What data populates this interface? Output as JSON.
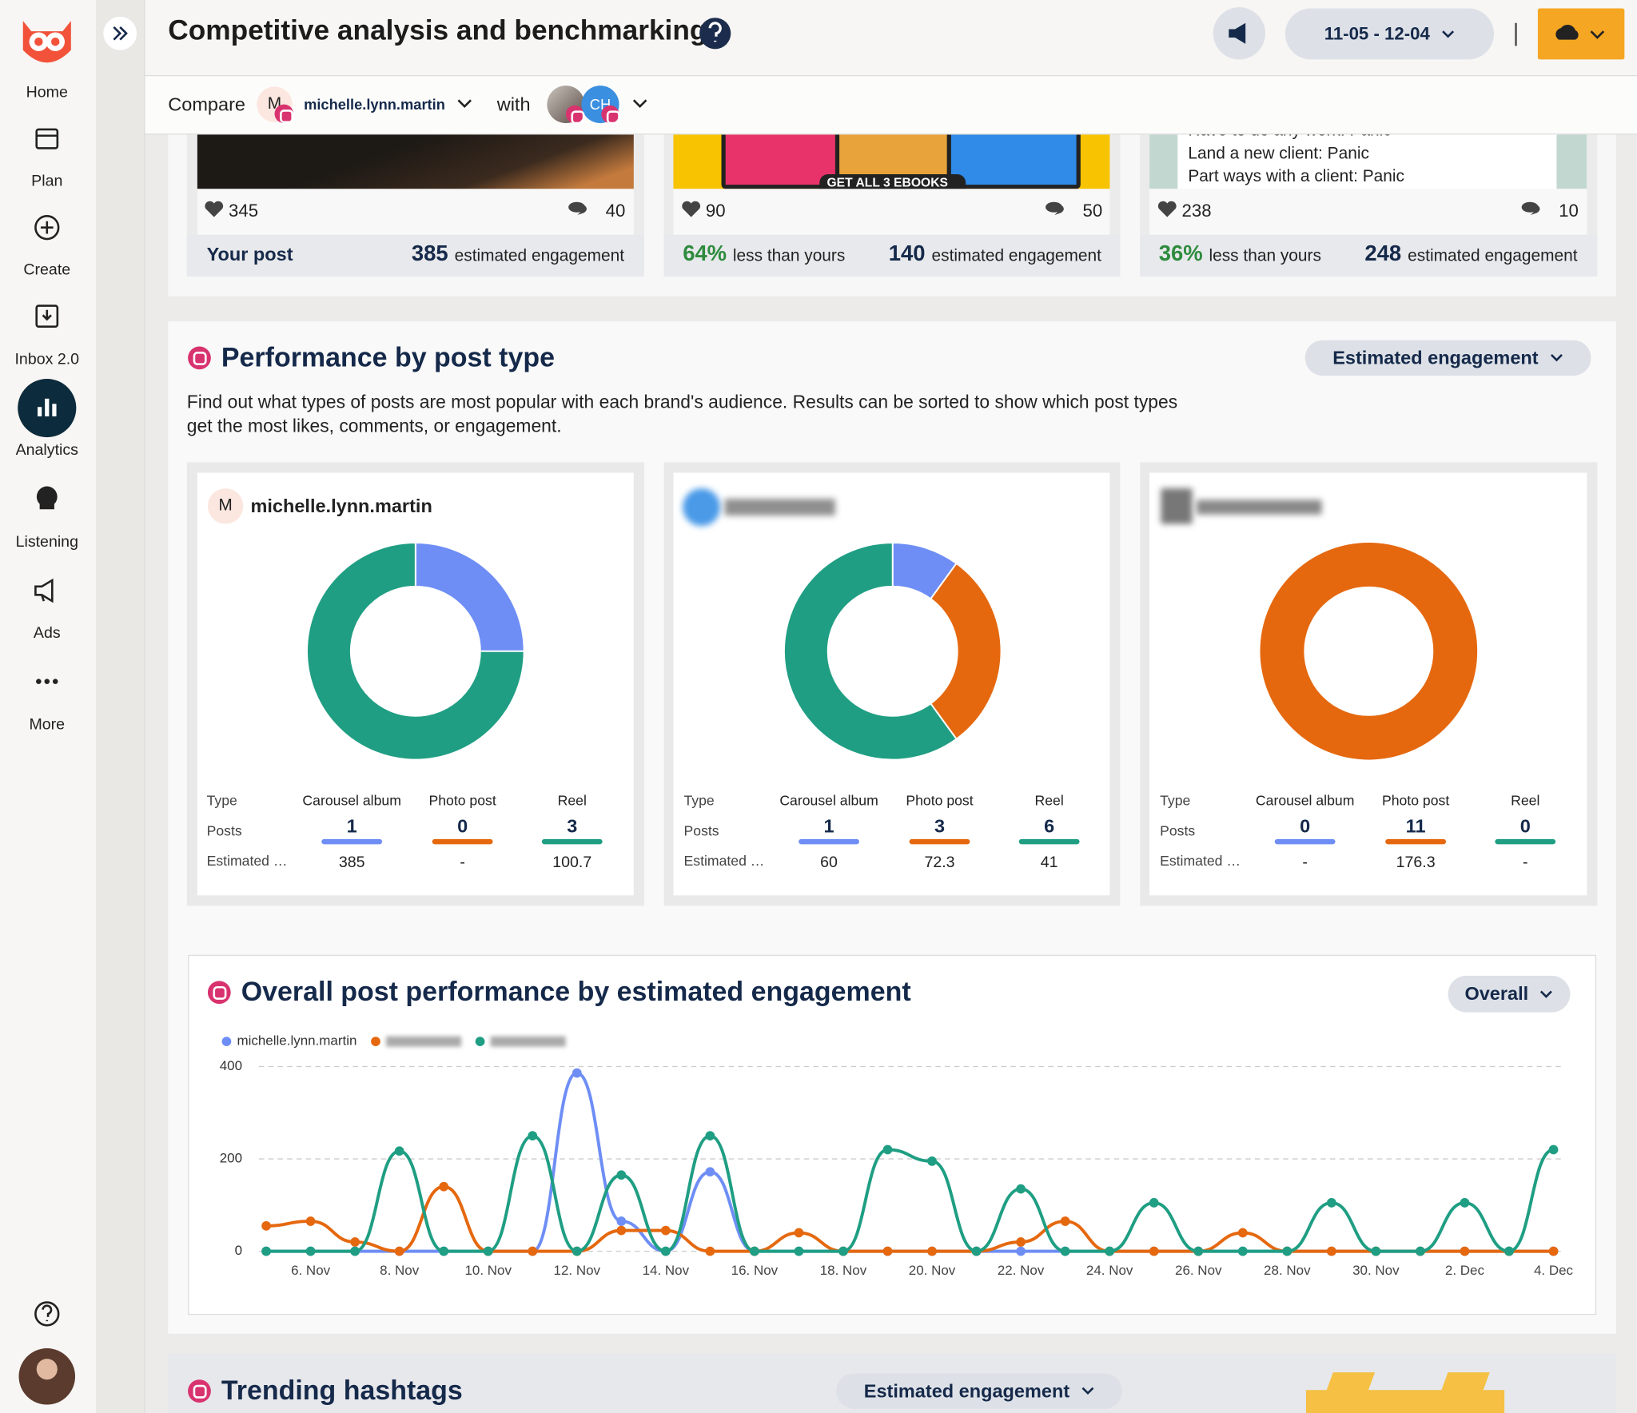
{
  "sidebar": {
    "items": [
      "Home",
      "Plan",
      "Create",
      "Inbox 2.0",
      "Analytics",
      "Listening",
      "Ads",
      "More"
    ]
  },
  "header": {
    "title": "Competitive analysis and benchmarking",
    "date_range": "11-05 - 12-04"
  },
  "compare_bar": {
    "label": "Compare",
    "avatar_initial": "M",
    "account": "michelle.lynn.martin",
    "with_label": "with",
    "competitor_initials": "CH"
  },
  "top_posts": {
    "engagement_label": "estimated engagement",
    "cards": [
      {
        "likes": 345,
        "comments": 40,
        "footer_label": "Your post",
        "engagement": 385
      },
      {
        "image_text": "GET ALL 3 EBOOKS",
        "likes": 90,
        "comments": 50,
        "difference": "64%",
        "difference_label": "less than yours",
        "engagement": 140
      },
      {
        "caption_lines": [
          "Have to do any work: Panic",
          "Land a new client: Panic",
          "Part ways with a client: Panic"
        ],
        "likes": 238,
        "comments": 10,
        "difference": "36%",
        "difference_label": "less than yours",
        "engagement": 248
      }
    ]
  },
  "performance_by_post_type": {
    "title": "Performance by post type",
    "dropdown": "Estimated engagement",
    "description": "Find out what types of posts are most popular with each brand's audience. Results can be sorted to show which post types get the most likes, comments, or engagement.",
    "row_labels": [
      "Type",
      "Posts",
      "Estimated …"
    ],
    "types": [
      "Carousel album",
      "Photo post",
      "Reel"
    ],
    "colors": [
      "#6e8ef5",
      "#e5680f",
      "#1f9e83"
    ],
    "accounts": [
      {
        "name": "michelle.lynn.martin",
        "initial": "M",
        "posts": [
          1,
          0,
          3
        ],
        "estimated": [
          385,
          "-",
          100.7
        ]
      },
      {
        "posts": [
          1,
          3,
          6
        ],
        "estimated": [
          60,
          72.3,
          41
        ]
      },
      {
        "posts": [
          0,
          11,
          0
        ],
        "estimated": [
          "-",
          176.3,
          "-"
        ]
      }
    ]
  },
  "chart_data": {
    "type": "line",
    "title": "Overall post performance by estimated engagement",
    "dropdown": "Overall",
    "categories": [
      null,
      "6. Nov",
      null,
      "8. Nov",
      null,
      "10. Nov",
      null,
      "12. Nov",
      null,
      "14. Nov",
      null,
      "16. Nov",
      null,
      "18. Nov",
      null,
      "20. Nov",
      null,
      "22. Nov",
      null,
      "24. Nov",
      null,
      "26. Nov",
      null,
      "28. Nov",
      null,
      "30. Nov",
      null,
      "2. Dec",
      null,
      "4. Dec"
    ],
    "series": [
      {
        "name": "michelle.lynn.martin",
        "color": "#6e8ef5",
        "values": [
          0,
          0,
          0,
          0,
          0,
          0,
          0,
          386,
          65,
          0,
          172,
          0,
          0,
          0,
          0,
          0,
          0,
          0,
          0,
          0,
          0,
          0,
          0,
          0,
          0,
          0,
          0,
          0,
          0,
          0
        ]
      },
      {
        "color": "#e5680f",
        "values": [
          55,
          65,
          20,
          0,
          140,
          0,
          0,
          0,
          45,
          45,
          0,
          0,
          40,
          0,
          0,
          0,
          0,
          20,
          65,
          0,
          0,
          0,
          40,
          0,
          0,
          0,
          0,
          0,
          0,
          0
        ]
      },
      {
        "color": "#1f9e83",
        "values": [
          0,
          0,
          0,
          217,
          0,
          0,
          250,
          0,
          165,
          0,
          250,
          0,
          0,
          0,
          220,
          195,
          0,
          135,
          0,
          0,
          105,
          0,
          0,
          0,
          105,
          0,
          0,
          105,
          0,
          220
        ]
      }
    ],
    "ylim": [
      0,
      400
    ],
    "yticks": [
      0,
      200,
      400
    ],
    "grid": true
  },
  "trending_hashtags": {
    "title": "Trending hashtags",
    "dropdown": "Estimated engagement"
  }
}
